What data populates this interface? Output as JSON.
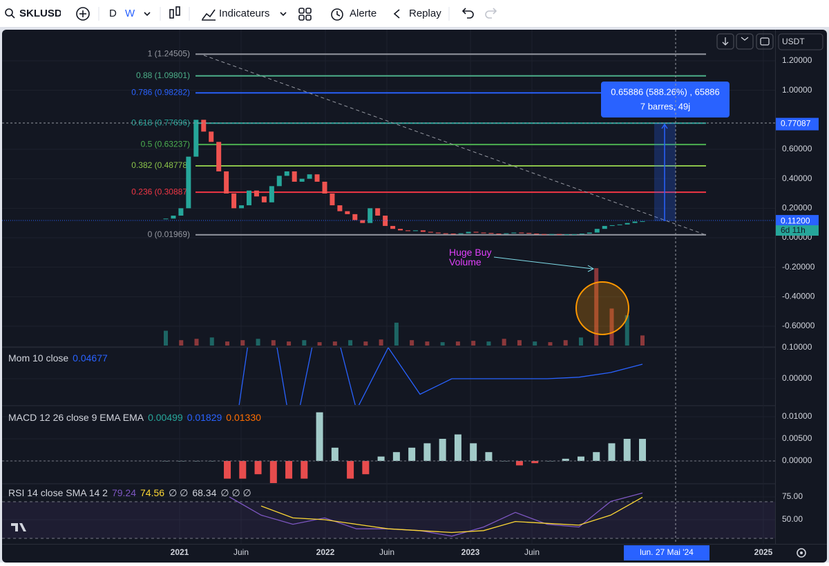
{
  "toolbar": {
    "symbol": "SKLUSDT",
    "intervals": [
      "D",
      "W"
    ],
    "buttons": [
      "Indicateurs",
      "Alerte",
      "Replay"
    ]
  },
  "price_axis": {
    "currency": "USDT",
    "ticks": [
      {
        "value": 1.2,
        "label": "1.20000"
      },
      {
        "value": 1.0,
        "label": "1.00000"
      },
      {
        "value": 0.6,
        "label": "0.60000"
      },
      {
        "value": 0.4,
        "label": "0.40000"
      },
      {
        "value": 0.2,
        "label": "0.20000"
      },
      {
        "value": 0,
        "label": "0.00000"
      },
      {
        "value": -0.2,
        "label": "-0.20000"
      },
      {
        "value": -0.4,
        "label": "-0.40000"
      },
      {
        "value": -0.6,
        "label": "-0.60000"
      }
    ],
    "cursor": {
      "value": 0.77087,
      "label": "0.77087"
    },
    "current_price": {
      "value": 0.112,
      "label": "0.11200"
    },
    "countdown": "6d 11h"
  },
  "time_axis": {
    "labels": [
      "2021",
      "Juin",
      "2022",
      "Juin",
      "2023",
      "Juin",
      "2025"
    ],
    "cursor": "lun. 27 Mai '24"
  },
  "fibonacci": [
    {
      "label": "1 (1.24505)",
      "value": 1.24505,
      "color": "#9598a1"
    },
    {
      "label": "0.88 (1.09801)",
      "value": 1.09801,
      "color": "#4caf89"
    },
    {
      "label": "0.786 (0.98282)",
      "value": 0.98282,
      "color": "#2962ff"
    },
    {
      "label": "0.618 (0.77696)",
      "value": 0.77696,
      "color": "#26a69a"
    },
    {
      "label": "0.5 (0.63237)",
      "value": 0.63237,
      "color": "#4caf50"
    },
    {
      "label": "0.382 (0.48778)",
      "value": 0.48778,
      "color": "#8bc34a"
    },
    {
      "label": "0.236 (0.30887)",
      "value": 0.30887,
      "color": "#f23645"
    },
    {
      "label": "0 (0.01969)",
      "value": 0.01969,
      "color": "#9598a1"
    }
  ],
  "measure": {
    "line1": "0.65886 (588.26%) , 65886",
    "line2": "7 barres, 49j"
  },
  "annotation": "Huge Buy Volume",
  "price": {
    "closes": [
      0.13,
      0.15,
      0.2,
      0.55,
      0.8,
      0.72,
      0.65,
      0.45,
      0.3,
      0.2,
      0.22,
      0.32,
      0.28,
      0.24,
      0.35,
      0.42,
      0.45,
      0.38,
      0.4,
      0.43,
      0.38,
      0.3,
      0.22,
      0.18,
      0.16,
      0.12,
      0.1,
      0.2,
      0.15,
      0.08,
      0.06,
      0.05,
      0.045,
      0.05,
      0.04,
      0.035,
      0.03,
      0.028,
      0.025,
      0.03,
      0.04,
      0.035,
      0.032,
      0.028,
      0.026,
      0.03,
      0.035,
      0.032,
      0.028,
      0.025,
      0.024,
      0.025,
      0.022,
      0.023,
      0.024,
      0.028,
      0.035,
      0.06,
      0.08,
      0.085,
      0.09,
      0.1,
      0.11,
      0.112
    ],
    "volumes": [
      22,
      8,
      10,
      12,
      6,
      8,
      10,
      8,
      6,
      8,
      5,
      6,
      8,
      6,
      9,
      34,
      8,
      6,
      5,
      6,
      7,
      6,
      10,
      8,
      6,
      5,
      8,
      12,
      115,
      55,
      45,
      15
    ]
  },
  "momentum": {
    "title": "Mom 10 close",
    "value": "0.04677",
    "ticks": [
      {
        "value": 0.1,
        "label": "0.10000"
      },
      {
        "value": 0,
        "label": "0.00000"
      }
    ],
    "values": [
      null,
      null,
      -0.3,
      0.4,
      -0.2,
      0.3,
      -0.1,
      0.1,
      -0.05,
      0.0,
      0.0,
      0.0,
      0.0,
      0.005,
      0.02,
      0.04677
    ]
  },
  "macd": {
    "title": "MACD 12 26 close 9 EMA EMA",
    "values": [
      "0.00499",
      "0.01829",
      "0.01330"
    ],
    "ticks": [
      {
        "value": 0.01,
        "label": "0.01000"
      },
      {
        "value": 0.005,
        "label": "0.00500"
      },
      {
        "value": 0,
        "label": "0.00000"
      }
    ],
    "histogram": [
      0,
      0,
      0,
      0,
      -0.004,
      -0.004,
      -0.003,
      -0.005,
      -0.004,
      -0.004,
      0.011,
      0.003,
      -0.004,
      -0.003,
      0.001,
      0.002,
      0.003,
      0.004,
      0.005,
      0.006,
      0.004,
      0.002,
      0,
      -0.001,
      -0.0005,
      0,
      0.0005,
      0.001,
      0.002,
      0.004,
      0.005,
      0.00499
    ]
  },
  "rsi": {
    "title": "RSI 14 close SMA 14 2",
    "values": [
      "79.24",
      "74.56",
      "∅ ∅",
      "68.34",
      "∅ ∅ ∅"
    ],
    "ticks": [
      {
        "value": 75,
        "label": "75.00"
      },
      {
        "value": 50,
        "label": "50.00"
      }
    ],
    "rsi": [
      null,
      null,
      75,
      55,
      45,
      52,
      40,
      40,
      38,
      32,
      42,
      58,
      45,
      42,
      70,
      79.24
    ],
    "sma": [
      null,
      null,
      null,
      65,
      52,
      50,
      45,
      40,
      38,
      36,
      38,
      48,
      46,
      44,
      55,
      74.56
    ]
  }
}
